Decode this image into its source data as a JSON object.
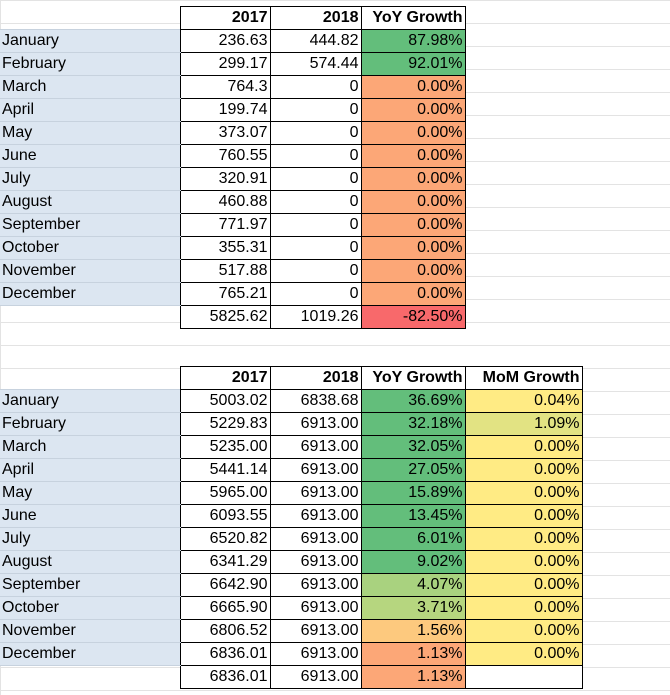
{
  "table1": {
    "headers": [
      "2017",
      "2018",
      "YoY Growth"
    ],
    "rows": [
      {
        "month": "January",
        "y2017": "236.63",
        "y2018": "444.82",
        "yoy": "87.98%",
        "color": "#63be7b"
      },
      {
        "month": "February",
        "y2017": "299.17",
        "y2018": "574.44",
        "yoy": "92.01%",
        "color": "#63be7b"
      },
      {
        "month": "March",
        "y2017": "764.3",
        "y2018": "0",
        "yoy": "0.00%",
        "color": "#fca777"
      },
      {
        "month": "April",
        "y2017": "199.74",
        "y2018": "0",
        "yoy": "0.00%",
        "color": "#fca777"
      },
      {
        "month": "May",
        "y2017": "373.07",
        "y2018": "0",
        "yoy": "0.00%",
        "color": "#fca777"
      },
      {
        "month": "June",
        "y2017": "760.55",
        "y2018": "0",
        "yoy": "0.00%",
        "color": "#fca777"
      },
      {
        "month": "July",
        "y2017": "320.91",
        "y2018": "0",
        "yoy": "0.00%",
        "color": "#fca777"
      },
      {
        "month": "August",
        "y2017": "460.88",
        "y2018": "0",
        "yoy": "0.00%",
        "color": "#fca777"
      },
      {
        "month": "September",
        "y2017": "771.97",
        "y2018": "0",
        "yoy": "0.00%",
        "color": "#fca777"
      },
      {
        "month": "October",
        "y2017": "355.31",
        "y2018": "0",
        "yoy": "0.00%",
        "color": "#fca777"
      },
      {
        "month": "November",
        "y2017": "517.88",
        "y2018": "0",
        "yoy": "0.00%",
        "color": "#fca777"
      },
      {
        "month": "December",
        "y2017": "765.21",
        "y2018": "0",
        "yoy": "0.00%",
        "color": "#fca777"
      }
    ],
    "total": {
      "y2017": "5825.62",
      "y2018": "1019.26",
      "yoy": "-82.50%",
      "color": "#f8696b"
    }
  },
  "table2": {
    "headers": [
      "2017",
      "2018",
      "YoY Growth",
      "MoM Growth"
    ],
    "rows": [
      {
        "month": "January",
        "y2017": "5003.02",
        "y2018": "6838.68",
        "yoy": "36.69%",
        "yoy_color": "#63be7b",
        "mom": "0.04%",
        "mom_color": "#ffeb84"
      },
      {
        "month": "February",
        "y2017": "5229.83",
        "y2018": "6913.00",
        "yoy": "32.18%",
        "yoy_color": "#63be7b",
        "mom": "1.09%",
        "mom_color": "#e2e383"
      },
      {
        "month": "March",
        "y2017": "5235.00",
        "y2018": "6913.00",
        "yoy": "32.05%",
        "yoy_color": "#63be7b",
        "mom": "0.00%",
        "mom_color": "#ffeb84"
      },
      {
        "month": "April",
        "y2017": "5441.14",
        "y2018": "6913.00",
        "yoy": "27.05%",
        "yoy_color": "#63be7b",
        "mom": "0.00%",
        "mom_color": "#ffeb84"
      },
      {
        "month": "May",
        "y2017": "5965.00",
        "y2018": "6913.00",
        "yoy": "15.89%",
        "yoy_color": "#63be7b",
        "mom": "0.00%",
        "mom_color": "#ffeb84"
      },
      {
        "month": "June",
        "y2017": "6093.55",
        "y2018": "6913.00",
        "yoy": "13.45%",
        "yoy_color": "#63be7b",
        "mom": "0.00%",
        "mom_color": "#ffeb84"
      },
      {
        "month": "July",
        "y2017": "6520.82",
        "y2018": "6913.00",
        "yoy": "6.01%",
        "yoy_color": "#63be7b",
        "mom": "0.00%",
        "mom_color": "#ffeb84"
      },
      {
        "month": "August",
        "y2017": "6341.29",
        "y2018": "6913.00",
        "yoy": "9.02%",
        "yoy_color": "#63be7b",
        "mom": "0.00%",
        "mom_color": "#ffeb84"
      },
      {
        "month": "September",
        "y2017": "6642.90",
        "y2018": "6913.00",
        "yoy": "4.07%",
        "yoy_color": "#a9d27f",
        "mom": "0.00%",
        "mom_color": "#ffeb84"
      },
      {
        "month": "October",
        "y2017": "6665.90",
        "y2018": "6913.00",
        "yoy": "3.71%",
        "yoy_color": "#b6d67f",
        "mom": "0.00%",
        "mom_color": "#ffeb84"
      },
      {
        "month": "November",
        "y2017": "6806.52",
        "y2018": "6913.00",
        "yoy": "1.56%",
        "yoy_color": "#fdc97e",
        "mom": "0.00%",
        "mom_color": "#ffeb84"
      },
      {
        "month": "December",
        "y2017": "6836.01",
        "y2018": "6913.00",
        "yoy": "1.13%",
        "yoy_color": "#fca777",
        "mom": "0.00%",
        "mom_color": "#ffeb84"
      }
    ],
    "total": {
      "y2017": "6836.01",
      "y2018": "6913.00",
      "yoy": "1.13%",
      "color": "#fca777"
    }
  }
}
